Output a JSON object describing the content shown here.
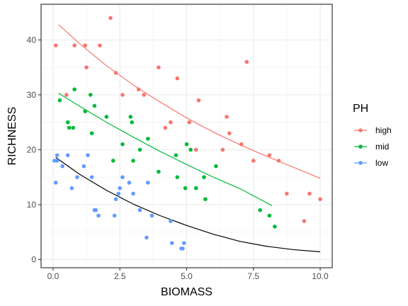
{
  "chart_data": {
    "type": "scatter",
    "xlabel": "BIOMASS",
    "ylabel": "RICHNESS",
    "xlim": [
      -0.45,
      10.45
    ],
    "ylim": [
      -1.5,
      46.5
    ],
    "x_ticks": [
      0.0,
      2.5,
      5.0,
      7.5,
      10.0
    ],
    "x_tick_labels": [
      "0.0",
      "2.5",
      "5.0",
      "7.5",
      "10.0"
    ],
    "y_ticks": [
      0,
      10,
      20,
      30,
      40
    ],
    "y_tick_labels": [
      "0",
      "10",
      "20",
      "30",
      "40"
    ],
    "grid": true,
    "legend": {
      "title": "PH",
      "position": "right",
      "entries": [
        "high",
        "mid",
        "low"
      ]
    },
    "series": [
      {
        "name": "high",
        "color": "#F8766D",
        "points": [
          [
            0.1,
            39
          ],
          [
            0.5,
            30
          ],
          [
            0.8,
            39
          ],
          [
            1.2,
            39
          ],
          [
            1.25,
            35
          ],
          [
            1.75,
            39
          ],
          [
            2.15,
            44
          ],
          [
            2.35,
            34
          ],
          [
            2.6,
            30
          ],
          [
            3.2,
            31
          ],
          [
            3.4,
            30
          ],
          [
            3.95,
            35
          ],
          [
            4.2,
            24
          ],
          [
            4.4,
            25
          ],
          [
            4.65,
            33
          ],
          [
            5.1,
            25
          ],
          [
            5.35,
            20
          ],
          [
            5.45,
            29
          ],
          [
            6.35,
            20
          ],
          [
            6.5,
            26
          ],
          [
            6.6,
            23
          ],
          [
            7.05,
            21
          ],
          [
            7.25,
            36
          ],
          [
            7.5,
            18
          ],
          [
            8.1,
            19
          ],
          [
            8.45,
            18
          ],
          [
            8.75,
            12
          ],
          [
            9.4,
            7
          ],
          [
            9.6,
            12
          ],
          [
            10.0,
            11
          ]
        ],
        "fit": [
          [
            0.2,
            42.8
          ],
          [
            1.0,
            39.3
          ],
          [
            2.0,
            35.3
          ],
          [
            3.0,
            31.8
          ],
          [
            4.0,
            28.7
          ],
          [
            5.0,
            25.8
          ],
          [
            6.0,
            23.2
          ],
          [
            7.0,
            20.9
          ],
          [
            8.0,
            18.8
          ],
          [
            9.0,
            16.8
          ],
          [
            10.0,
            14.8
          ]
        ]
      },
      {
        "name": "mid",
        "color": "#00BA38",
        "points": [
          [
            0.25,
            29
          ],
          [
            0.55,
            25
          ],
          [
            0.6,
            24
          ],
          [
            0.75,
            24
          ],
          [
            0.8,
            31
          ],
          [
            1.2,
            27
          ],
          [
            1.4,
            30
          ],
          [
            1.45,
            23
          ],
          [
            1.55,
            28
          ],
          [
            2.0,
            26
          ],
          [
            2.25,
            18
          ],
          [
            2.6,
            21
          ],
          [
            2.9,
            26
          ],
          [
            2.95,
            25
          ],
          [
            3.0,
            18
          ],
          [
            3.25,
            20
          ],
          [
            3.55,
            22
          ],
          [
            3.95,
            16
          ],
          [
            4.6,
            19
          ],
          [
            4.65,
            15
          ],
          [
            4.95,
            13
          ],
          [
            5.0,
            21
          ],
          [
            5.15,
            20
          ],
          [
            5.35,
            13
          ],
          [
            5.65,
            15
          ],
          [
            5.7,
            11
          ],
          [
            6.1,
            17
          ],
          [
            7.75,
            9
          ],
          [
            8.1,
            8
          ],
          [
            8.3,
            6
          ]
        ],
        "fit": [
          [
            0.2,
            30.3
          ],
          [
            1.0,
            27.9
          ],
          [
            2.0,
            25.0
          ],
          [
            3.0,
            22.3
          ],
          [
            4.0,
            19.7
          ],
          [
            5.0,
            17.3
          ],
          [
            6.0,
            15.0
          ],
          [
            7.0,
            12.9
          ],
          [
            8.2,
            9.8
          ]
        ]
      },
      {
        "name": "low",
        "color": "#619CFF",
        "points": [
          [
            0.05,
            18
          ],
          [
            0.1,
            14
          ],
          [
            0.15,
            18
          ],
          [
            0.15,
            19
          ],
          [
            0.35,
            17
          ],
          [
            0.55,
            19
          ],
          [
            0.7,
            13
          ],
          [
            0.9,
            15
          ],
          [
            1.15,
            17
          ],
          [
            1.3,
            19
          ],
          [
            1.45,
            15
          ],
          [
            1.55,
            9
          ],
          [
            1.6,
            9
          ],
          [
            1.7,
            8
          ],
          [
            2.3,
            8
          ],
          [
            2.35,
            11
          ],
          [
            2.45,
            12
          ],
          [
            2.5,
            13
          ],
          [
            2.6,
            15
          ],
          [
            2.85,
            14
          ],
          [
            3.0,
            12
          ],
          [
            3.25,
            9
          ],
          [
            3.5,
            4
          ],
          [
            3.55,
            14
          ],
          [
            3.7,
            8
          ],
          [
            4.4,
            7
          ],
          [
            4.45,
            3
          ],
          [
            4.8,
            2
          ],
          [
            4.85,
            2
          ],
          [
            4.9,
            3
          ]
        ],
        "fit": [
          [
            0.1,
            18.6
          ],
          [
            1.0,
            15.5
          ],
          [
            2.0,
            12.6
          ],
          [
            3.0,
            10.1
          ],
          [
            4.0,
            8.0
          ],
          [
            5.0,
            6.2
          ],
          [
            6.0,
            4.6
          ],
          [
            7.0,
            3.3
          ],
          [
            8.0,
            2.4
          ],
          [
            9.0,
            1.8
          ],
          [
            10.0,
            1.4
          ]
        ],
        "fit_color": "#000000"
      }
    ]
  }
}
